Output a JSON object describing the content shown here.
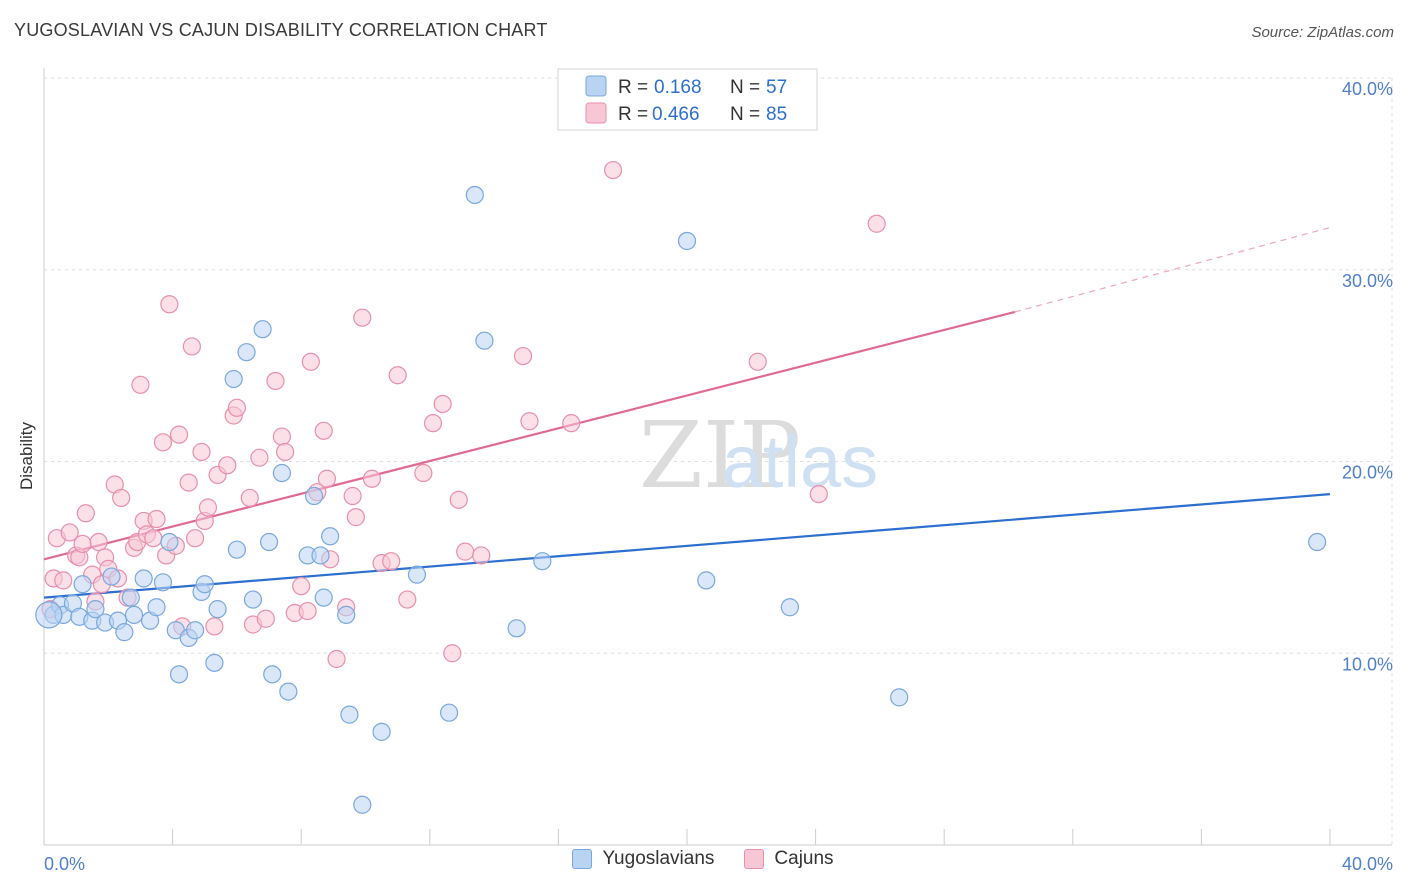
{
  "title": "YUGOSLAVIAN VS CAJUN DISABILITY CORRELATION CHART",
  "source": "Source: ZipAtlas.com",
  "watermark": {
    "zip": "ZIP",
    "atlas": "atlas"
  },
  "legend": {
    "yugoslavians": {
      "r_label": "R =",
      "r_value": "0.168",
      "n_label": "N =",
      "n_value": "57"
    },
    "cajuns": {
      "r_label": "R =",
      "r_value": "0.466",
      "n_label": "N =",
      "n_value": "85"
    }
  },
  "colors": {
    "blue_fill": "#b9d4f3",
    "blue_stroke": "#7aa8de",
    "blue_line": "#2d6fcf",
    "pink_fill": "#f8c7d6",
    "pink_stroke": "#e88fae",
    "pink_line": "#e06a93",
    "axis_text": "#4f7fcf",
    "grid": "#dddddd"
  },
  "chart_data": {
    "type": "scatter",
    "title": "YUGOSLAVIAN VS CAJUN DISABILITY CORRELATION CHART",
    "xlabel": "",
    "ylabel": "Disability",
    "xlim": [
      0,
      40
    ],
    "ylim": [
      0,
      40
    ],
    "x_tick_labels": [
      "0.0%",
      "40.0%"
    ],
    "y_ticks": [
      10,
      20,
      30,
      40
    ],
    "y_tick_labels": [
      "10.0%",
      "20.0%",
      "30.0%",
      "40.0%"
    ],
    "grid": true,
    "legend_position": "top-center",
    "series": [
      {
        "name": "Yugoslavians",
        "r": 0.168,
        "n": 57,
        "trend": {
          "x0": 0,
          "y0": 12.9,
          "x1": 40,
          "y1": 18.3
        },
        "points": [
          [
            0.3,
            12.0
          ],
          [
            0.5,
            12.5
          ],
          [
            0.6,
            12.0
          ],
          [
            0.9,
            12.6
          ],
          [
            1.1,
            11.9
          ],
          [
            1.2,
            13.6
          ],
          [
            1.5,
            11.7
          ],
          [
            1.6,
            12.3
          ],
          [
            1.9,
            11.6
          ],
          [
            2.1,
            14.0
          ],
          [
            2.3,
            11.7
          ],
          [
            2.5,
            11.1
          ],
          [
            2.7,
            12.9
          ],
          [
            2.8,
            12.0
          ],
          [
            3.1,
            13.9
          ],
          [
            3.3,
            11.7
          ],
          [
            3.5,
            12.4
          ],
          [
            3.7,
            13.7
          ],
          [
            3.9,
            15.8
          ],
          [
            4.1,
            11.2
          ],
          [
            4.2,
            8.9
          ],
          [
            4.5,
            10.8
          ],
          [
            4.7,
            11.2
          ],
          [
            4.9,
            13.2
          ],
          [
            5.0,
            13.6
          ],
          [
            5.3,
            9.5
          ],
          [
            5.4,
            12.3
          ],
          [
            5.9,
            24.3
          ],
          [
            6.0,
            15.4
          ],
          [
            6.3,
            25.7
          ],
          [
            6.5,
            12.8
          ],
          [
            6.8,
            26.9
          ],
          [
            7.0,
            15.8
          ],
          [
            7.1,
            8.9
          ],
          [
            7.4,
            19.4
          ],
          [
            7.6,
            8.0
          ],
          [
            8.2,
            15.1
          ],
          [
            8.4,
            18.2
          ],
          [
            8.6,
            15.1
          ],
          [
            8.7,
            12.9
          ],
          [
            8.9,
            16.1
          ],
          [
            9.4,
            12.0
          ],
          [
            9.5,
            6.8
          ],
          [
            9.9,
            2.1
          ],
          [
            10.5,
            5.9
          ],
          [
            11.6,
            14.1
          ],
          [
            12.6,
            6.9
          ],
          [
            13.4,
            33.9
          ],
          [
            13.7,
            26.3
          ],
          [
            14.7,
            11.3
          ],
          [
            15.5,
            14.8
          ],
          [
            20.0,
            31.5
          ],
          [
            20.6,
            13.8
          ],
          [
            23.2,
            12.4
          ],
          [
            26.6,
            7.7
          ],
          [
            39.6,
            15.8
          ]
        ]
      },
      {
        "name": "Cajuns",
        "r": 0.466,
        "n": 85,
        "trend": {
          "x0": 0,
          "y0": 14.9,
          "x1": 30.2,
          "y1": 27.8,
          "dash_x1": 40,
          "dash_y1": 32.2
        },
        "points": [
          [
            0.2,
            12.3
          ],
          [
            0.3,
            13.9
          ],
          [
            0.4,
            16.0
          ],
          [
            0.6,
            13.8
          ],
          [
            0.8,
            16.3
          ],
          [
            1.0,
            15.1
          ],
          [
            1.1,
            15.0
          ],
          [
            1.2,
            15.7
          ],
          [
            1.3,
            17.3
          ],
          [
            1.5,
            14.1
          ],
          [
            1.6,
            12.7
          ],
          [
            1.7,
            15.8
          ],
          [
            1.8,
            13.6
          ],
          [
            1.9,
            15.0
          ],
          [
            2.0,
            14.4
          ],
          [
            2.2,
            18.8
          ],
          [
            2.3,
            13.9
          ],
          [
            2.4,
            18.1
          ],
          [
            2.6,
            12.9
          ],
          [
            2.8,
            15.5
          ],
          [
            2.9,
            15.8
          ],
          [
            3.0,
            24.0
          ],
          [
            3.1,
            16.9
          ],
          [
            3.2,
            16.2
          ],
          [
            3.4,
            16.0
          ],
          [
            3.5,
            17.0
          ],
          [
            3.7,
            21.0
          ],
          [
            3.8,
            15.1
          ],
          [
            3.9,
            28.2
          ],
          [
            4.1,
            15.6
          ],
          [
            4.2,
            21.4
          ],
          [
            4.3,
            11.4
          ],
          [
            4.5,
            18.9
          ],
          [
            4.6,
            26.0
          ],
          [
            4.7,
            16.0
          ],
          [
            4.9,
            20.5
          ],
          [
            5.0,
            16.9
          ],
          [
            5.1,
            17.6
          ],
          [
            5.3,
            11.4
          ],
          [
            5.4,
            19.3
          ],
          [
            5.7,
            19.8
          ],
          [
            5.9,
            22.4
          ],
          [
            6.0,
            22.8
          ],
          [
            6.4,
            18.1
          ],
          [
            6.5,
            11.5
          ],
          [
            6.7,
            20.2
          ],
          [
            6.9,
            11.8
          ],
          [
            7.2,
            24.2
          ],
          [
            7.4,
            21.3
          ],
          [
            7.5,
            20.5
          ],
          [
            7.8,
            12.1
          ],
          [
            8.0,
            13.5
          ],
          [
            8.2,
            12.2
          ],
          [
            8.3,
            25.2
          ],
          [
            8.5,
            18.4
          ],
          [
            8.7,
            21.6
          ],
          [
            8.8,
            19.1
          ],
          [
            8.9,
            14.9
          ],
          [
            9.1,
            9.7
          ],
          [
            9.4,
            12.4
          ],
          [
            9.6,
            18.2
          ],
          [
            9.7,
            17.1
          ],
          [
            9.9,
            27.5
          ],
          [
            10.2,
            19.1
          ],
          [
            10.5,
            14.7
          ],
          [
            10.8,
            14.8
          ],
          [
            11.0,
            24.5
          ],
          [
            11.3,
            12.8
          ],
          [
            11.8,
            19.4
          ],
          [
            12.1,
            22.0
          ],
          [
            12.4,
            23.0
          ],
          [
            12.7,
            10.0
          ],
          [
            12.9,
            18.0
          ],
          [
            13.1,
            15.3
          ],
          [
            13.6,
            15.1
          ],
          [
            14.9,
            25.5
          ],
          [
            15.1,
            22.1
          ],
          [
            16.4,
            22.0
          ],
          [
            17.7,
            35.2
          ],
          [
            22.2,
            25.2
          ],
          [
            24.1,
            18.3
          ],
          [
            25.9,
            32.4
          ]
        ]
      }
    ]
  }
}
